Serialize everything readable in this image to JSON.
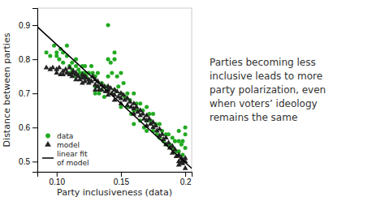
{
  "chart_data": {
    "type": "scatter",
    "xlabel": "Party inclusiveness (data)",
    "ylabel": "Distance between parties",
    "xlim": [
      0.085,
      0.205
    ],
    "ylim": [
      0.47,
      0.95
    ],
    "xticks": [
      {
        "value": 0.1,
        "label": "0.10"
      },
      0.15,
      0.2
    ],
    "yticks": [
      0.5,
      0.6,
      0.7,
      0.8,
      0.9
    ],
    "legend": "lower left",
    "annotation": "Parties becoming less\ninclusive leads to more\nparty polarization, even\nwhen voters’ ideology\nremains the same",
    "series": [
      {
        "name": "data",
        "type": "scatter",
        "marker": "circle",
        "color": "#22aa22",
        "x": [
          0.092,
          0.095,
          0.098,
          0.1,
          0.1,
          0.102,
          0.103,
          0.105,
          0.105,
          0.108,
          0.108,
          0.11,
          0.11,
          0.112,
          0.112,
          0.113,
          0.115,
          0.115,
          0.115,
          0.117,
          0.118,
          0.12,
          0.12,
          0.12,
          0.122,
          0.122,
          0.123,
          0.125,
          0.125,
          0.127,
          0.128,
          0.13,
          0.13,
          0.13,
          0.132,
          0.132,
          0.133,
          0.135,
          0.135,
          0.137,
          0.138,
          0.14,
          0.14,
          0.14,
          0.14,
          0.142,
          0.143,
          0.145,
          0.145,
          0.145,
          0.147,
          0.148,
          0.15,
          0.15,
          0.15,
          0.152,
          0.153,
          0.155,
          0.155,
          0.157,
          0.158,
          0.16,
          0.16,
          0.16,
          0.162,
          0.163,
          0.165,
          0.165,
          0.167,
          0.168,
          0.17,
          0.17,
          0.17,
          0.172,
          0.173,
          0.175,
          0.175,
          0.177,
          0.178,
          0.18,
          0.18,
          0.182,
          0.183,
          0.185,
          0.185,
          0.187,
          0.188,
          0.19,
          0.19,
          0.192,
          0.193,
          0.195,
          0.195,
          0.197,
          0.198,
          0.2,
          0.2,
          0.2,
          0.198,
          0.195
        ],
        "values": [
          0.82,
          0.81,
          0.84,
          0.81,
          0.82,
          0.8,
          0.83,
          0.79,
          0.82,
          0.81,
          0.84,
          0.76,
          0.78,
          0.77,
          0.79,
          0.76,
          0.75,
          0.78,
          0.8,
          0.77,
          0.76,
          0.78,
          0.75,
          0.76,
          0.76,
          0.78,
          0.75,
          0.76,
          0.74,
          0.78,
          0.76,
          0.75,
          0.72,
          0.7,
          0.76,
          0.72,
          0.7,
          0.73,
          0.71,
          0.69,
          0.72,
          0.9,
          0.8,
          0.75,
          0.71,
          0.79,
          0.76,
          0.8,
          0.82,
          0.71,
          0.75,
          0.72,
          0.76,
          0.7,
          0.66,
          0.73,
          0.69,
          0.7,
          0.66,
          0.68,
          0.64,
          0.7,
          0.65,
          0.61,
          0.67,
          0.65,
          0.67,
          0.62,
          0.65,
          0.6,
          0.66,
          0.62,
          0.59,
          0.64,
          0.62,
          0.64,
          0.59,
          0.61,
          0.58,
          0.61,
          0.57,
          0.59,
          0.56,
          0.58,
          0.55,
          0.58,
          0.55,
          0.57,
          0.54,
          0.56,
          0.53,
          0.56,
          0.53,
          0.55,
          0.52,
          0.54,
          0.6,
          0.58,
          0.56,
          0.59
        ]
      },
      {
        "name": "model",
        "type": "scatter",
        "marker": "triangle",
        "color": "#222222",
        "x": [
          0.092,
          0.095,
          0.097,
          0.1,
          0.1,
          0.102,
          0.103,
          0.105,
          0.105,
          0.107,
          0.108,
          0.11,
          0.11,
          0.112,
          0.112,
          0.113,
          0.115,
          0.115,
          0.115,
          0.117,
          0.118,
          0.12,
          0.12,
          0.12,
          0.122,
          0.122,
          0.123,
          0.125,
          0.125,
          0.127,
          0.128,
          0.13,
          0.13,
          0.13,
          0.132,
          0.132,
          0.133,
          0.135,
          0.135,
          0.137,
          0.138,
          0.14,
          0.14,
          0.14,
          0.142,
          0.143,
          0.145,
          0.145,
          0.145,
          0.147,
          0.148,
          0.15,
          0.15,
          0.15,
          0.152,
          0.153,
          0.155,
          0.155,
          0.157,
          0.158,
          0.16,
          0.16,
          0.16,
          0.162,
          0.163,
          0.165,
          0.165,
          0.167,
          0.168,
          0.17,
          0.17,
          0.17,
          0.172,
          0.173,
          0.175,
          0.175,
          0.177,
          0.178,
          0.18,
          0.18,
          0.182,
          0.183,
          0.185,
          0.185,
          0.187,
          0.188,
          0.19,
          0.19,
          0.192,
          0.193,
          0.195,
          0.195,
          0.197,
          0.198,
          0.2,
          0.2,
          0.2,
          0.198,
          0.197,
          0.195
        ],
        "values": [
          0.775,
          0.77,
          0.775,
          0.77,
          0.76,
          0.775,
          0.755,
          0.765,
          0.755,
          0.77,
          0.76,
          0.775,
          0.755,
          0.76,
          0.75,
          0.765,
          0.755,
          0.74,
          0.76,
          0.75,
          0.74,
          0.755,
          0.745,
          0.73,
          0.75,
          0.735,
          0.745,
          0.74,
          0.73,
          0.735,
          0.75,
          0.74,
          0.725,
          0.71,
          0.735,
          0.72,
          0.71,
          0.725,
          0.71,
          0.72,
          0.705,
          0.72,
          0.71,
          0.695,
          0.715,
          0.7,
          0.71,
          0.695,
          0.68,
          0.705,
          0.69,
          0.7,
          0.685,
          0.67,
          0.695,
          0.68,
          0.685,
          0.665,
          0.675,
          0.66,
          0.67,
          0.655,
          0.64,
          0.66,
          0.645,
          0.65,
          0.635,
          0.64,
          0.625,
          0.635,
          0.62,
          0.605,
          0.625,
          0.61,
          0.615,
          0.6,
          0.605,
          0.59,
          0.595,
          0.575,
          0.58,
          0.565,
          0.57,
          0.55,
          0.555,
          0.54,
          0.545,
          0.525,
          0.535,
          0.515,
          0.52,
          0.5,
          0.51,
          0.495,
          0.5,
          0.48,
          0.51,
          0.505,
          0.495,
          0.49
        ]
      },
      {
        "name": "linear fit\nof model",
        "type": "line",
        "color": "black",
        "x": [
          0.085,
          0.205
        ],
        "values": [
          0.895,
          0.48
        ]
      }
    ]
  }
}
